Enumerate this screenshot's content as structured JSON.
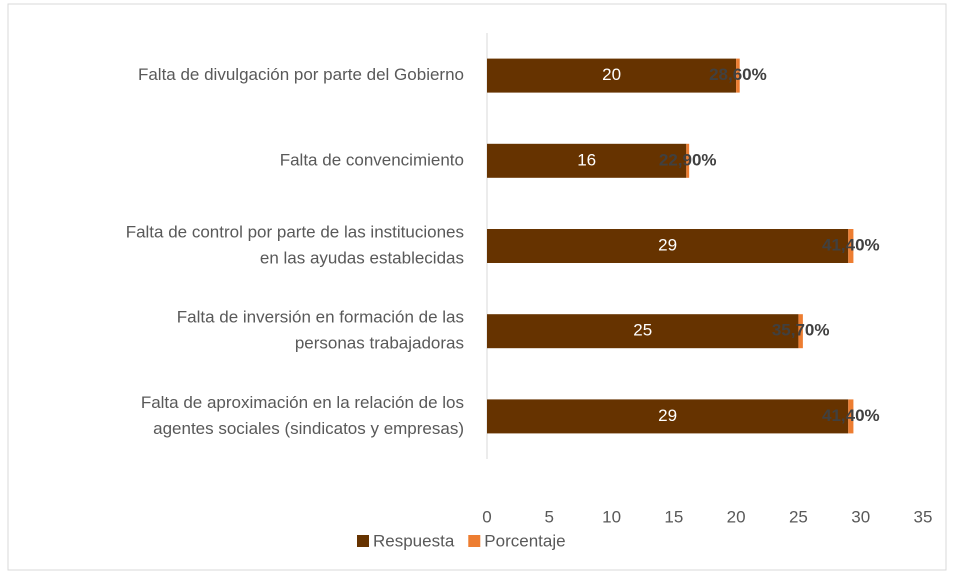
{
  "chart_data": {
    "type": "stacked_barh",
    "categories": [
      [
        "Falta de divulgación por parte del Gobierno"
      ],
      [
        "Falta de convencimiento"
      ],
      [
        "Falta de control por parte de las instituciones",
        "en las ayudas establecidas"
      ],
      [
        "Falta de inversión en formación de las",
        "personas trabajadoras"
      ],
      [
        "Falta de aproximación en la relación de los",
        "agentes sociales (sindicatos y empresas)"
      ]
    ],
    "series": [
      {
        "name": "Respuesta",
        "color": "#663300",
        "values": [
          20,
          16,
          29,
          25,
          29
        ]
      },
      {
        "name": "Porcentaje",
        "color": "#ed7d31",
        "values": [
          0.286,
          0.229,
          0.414,
          0.357,
          0.414
        ],
        "value_labels": [
          "28,60%",
          "22,90%",
          "41,40%",
          "35,70%",
          "41,40%"
        ]
      }
    ],
    "xlim": [
      0,
      35
    ],
    "xticks": [
      0,
      5,
      10,
      15,
      20,
      25,
      30,
      35
    ],
    "legend": "bottom"
  }
}
